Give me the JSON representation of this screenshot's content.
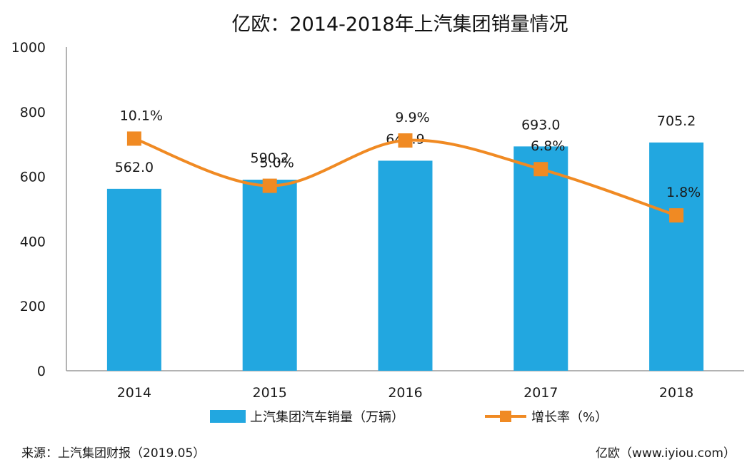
{
  "title": "亿欧：2014-2018年上汽集团销量情况",
  "source": "来源：上汽集团财报（2019.05）",
  "credit": "亿欧（www.iyiou.com）",
  "colors": {
    "bar": "#22a7e0",
    "line": "#f08a23",
    "axis": "#9a9a9a"
  },
  "chart_data": {
    "type": "bar",
    "title": "亿欧：2014-2018年上汽集团销量情况",
    "categories": [
      "2014",
      "2015",
      "2016",
      "2017",
      "2018"
    ],
    "ylim": [
      0,
      1000
    ],
    "yticks": [
      "0",
      "200",
      "400",
      "600",
      "800",
      "1000"
    ],
    "grid": false,
    "legend_position": "bottom",
    "series": [
      {
        "name": "上汽集团汽车销量（万辆）",
        "type": "bar",
        "values": [
          562.0,
          590.2,
          648.9,
          693.0,
          705.2
        ],
        "labels": [
          "562.0",
          "590.2",
          "648.9",
          "693.0",
          "705.2"
        ]
      },
      {
        "name": "增长率（%）",
        "type": "line",
        "secondary_axis": true,
        "values": [
          10.1,
          5.0,
          9.9,
          6.8,
          1.8
        ],
        "labels": [
          "10.1%",
          "5.0%",
          "9.9%",
          "6.8%",
          "1.8%"
        ]
      }
    ]
  }
}
